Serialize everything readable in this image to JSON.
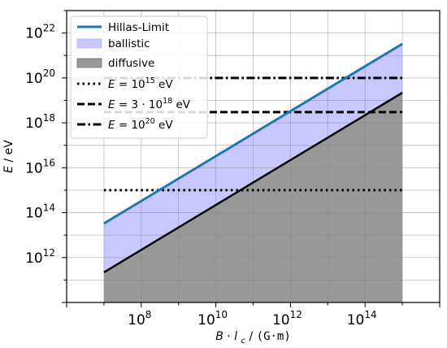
{
  "chart_data": {
    "type": "line",
    "x_scale": "log",
    "y_scale": "log",
    "xlim": [
      1000000.0,
      1e+16
    ],
    "ylim": [
      10000000000.0,
      1e+23
    ],
    "xlabel": {
      "B": "B",
      "dot": "·",
      "l": "l",
      "c": "c",
      "slash": "/",
      "units": "(G·m)"
    },
    "ylabel": {
      "E": "E",
      "slash": "/",
      "units": "eV"
    },
    "x_ticks": [
      {
        "base": "10",
        "exp": "8",
        "value": 100000000.0
      },
      {
        "base": "10",
        "exp": "10",
        "value": 10000000000.0
      },
      {
        "base": "10",
        "exp": "12",
        "value": 1000000000000.0
      },
      {
        "base": "10",
        "exp": "14",
        "value": 100000000000000.0
      }
    ],
    "y_ticks": [
      {
        "base": "10",
        "exp": "12",
        "value": 1000000000000.0
      },
      {
        "base": "10",
        "exp": "14",
        "value": 100000000000000.0
      },
      {
        "base": "10",
        "exp": "16",
        "value": 1e+16
      },
      {
        "base": "10",
        "exp": "18",
        "value": 1e+18
      },
      {
        "base": "10",
        "exp": "20",
        "value": 1e+20
      },
      {
        "base": "10",
        "exp": "22",
        "value": 1e+22
      }
    ],
    "grid": true,
    "legend_position": "top-left",
    "series": [
      {
        "key": "hillas",
        "name": "Hillas-Limit",
        "kind": "line",
        "color": "#1f77b4",
        "x": [
          10000000.0,
          1000000000000000.0
        ],
        "y": [
          33000000000000.0,
          3.3e+21
        ]
      },
      {
        "key": "ballistic",
        "name": "ballistic",
        "kind": "band",
        "color": "#c8c8ff",
        "x": [
          10000000.0,
          1000000000000000.0
        ],
        "y_lower": [
          220000000000.0,
          2.2e+19
        ],
        "y_upper": [
          33000000000000.0,
          3.3e+21
        ]
      },
      {
        "key": "diffusive",
        "name": "diffusive",
        "kind": "fill_below",
        "color": "#999999",
        "edge_color": "#000000",
        "x": [
          10000000.0,
          1000000000000000.0
        ],
        "y": [
          220000000000.0,
          2.2e+19
        ]
      },
      {
        "key": "e15",
        "kind": "hline",
        "style": "dotted",
        "color": "#000000",
        "x": [
          10000000.0,
          1000000000000000.0
        ],
        "y": 1000000000000000.0,
        "label": {
          "var": "E",
          "eq": "=",
          "base": "10",
          "exp": "15",
          "unit": "eV"
        }
      },
      {
        "key": "e18",
        "kind": "hline",
        "style": "dashed",
        "color": "#000000",
        "x": [
          10000000.0,
          1000000000000000.0
        ],
        "y": 3e+18,
        "label": {
          "var": "E",
          "eq": "=",
          "coef": "3",
          "dot": "·",
          "base": "10",
          "exp": "18",
          "unit": "eV"
        }
      },
      {
        "key": "e20",
        "kind": "hline",
        "style": "dashdot",
        "color": "#000000",
        "x": [
          10000000.0,
          1000000000000000.0
        ],
        "y": 1e+20,
        "label": {
          "var": "E",
          "eq": "=",
          "base": "10",
          "exp": "20",
          "unit": "eV"
        }
      }
    ]
  }
}
